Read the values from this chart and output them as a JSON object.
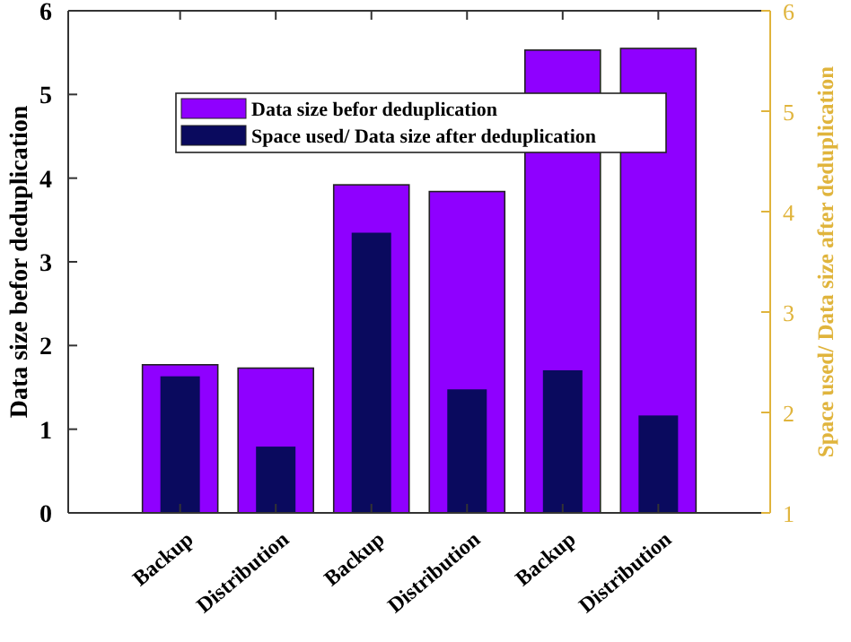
{
  "chart_data": {
    "type": "bar",
    "categories": [
      "Backup",
      "Distribution",
      "Backup",
      "Distribution",
      "Backup",
      "Distribution"
    ],
    "ylabel": "Data size befor deduplication",
    "y2label": "Space used/ Data size after deduplication",
    "series": [
      {
        "name": "Data size befor deduplication",
        "color": "#8f00ff",
        "values": [
          1.77,
          1.73,
          3.92,
          3.84,
          5.53,
          5.55
        ]
      },
      {
        "name": "Space used/ Data size after deduplication",
        "color": "#0a0a5e",
        "axis": "y2",
        "values": [
          2.36,
          1.66,
          3.79,
          2.23,
          2.42,
          1.97
        ]
      }
    ],
    "ylim": [
      0,
      6
    ],
    "yticks": [
      0,
      1,
      2,
      3,
      4,
      5,
      6
    ],
    "y2lim": [
      1,
      6
    ],
    "y2ticks": [
      1,
      2,
      3,
      4,
      5,
      6
    ],
    "legend": "top",
    "grid": false
  }
}
